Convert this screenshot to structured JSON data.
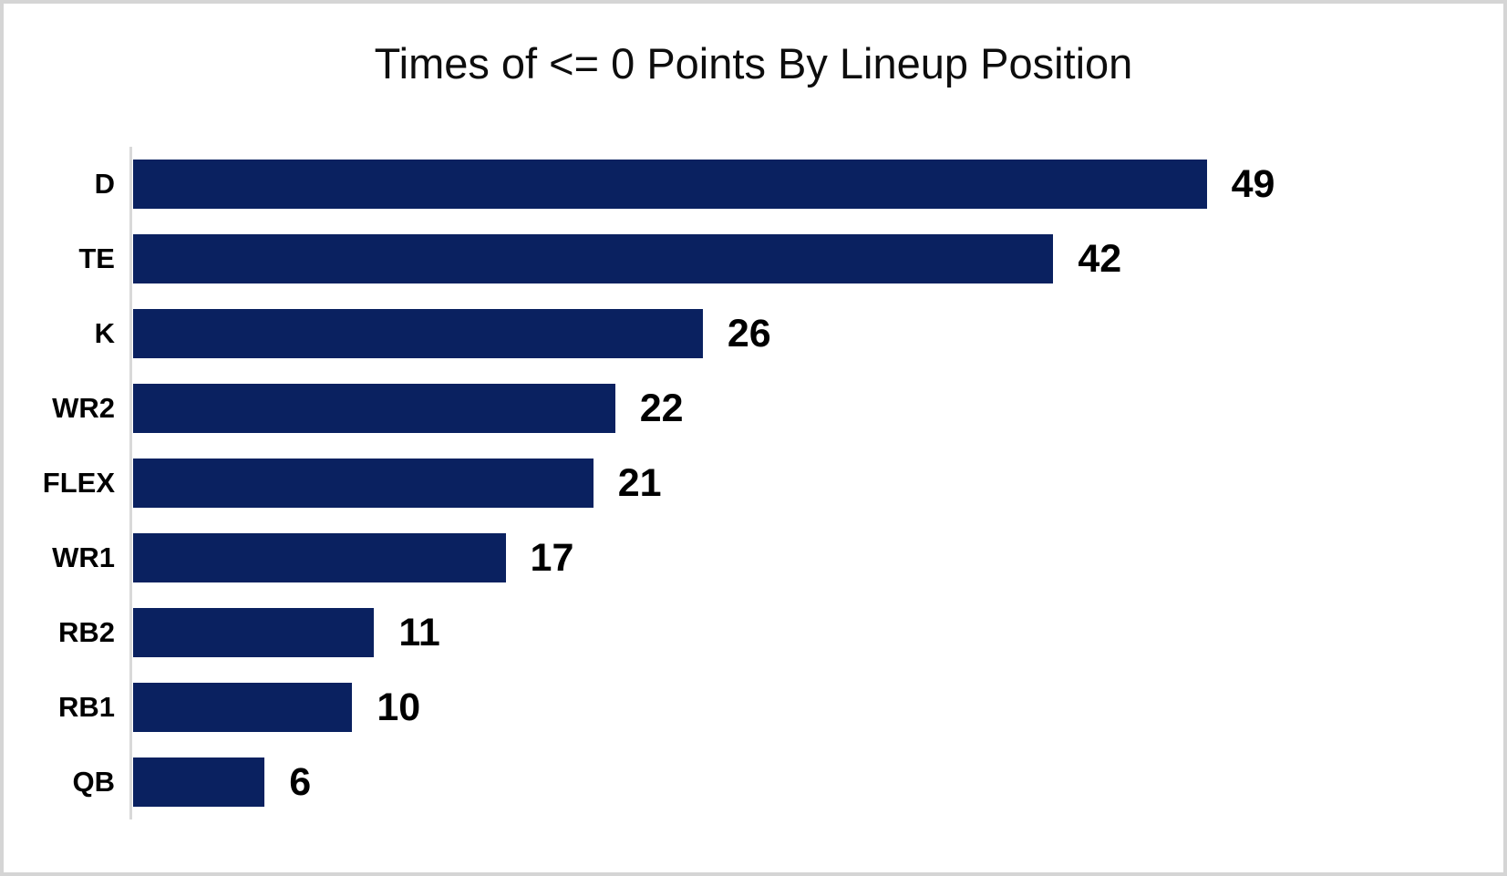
{
  "chart_data": {
    "type": "bar",
    "orientation": "horizontal",
    "title": "Times of <= 0 Points By Lineup Position",
    "categories": [
      "D",
      "TE",
      "K",
      "WR2",
      "FLEX",
      "WR1",
      "RB2",
      "RB1",
      "QB"
    ],
    "values": [
      49,
      42,
      26,
      22,
      21,
      17,
      11,
      10,
      6
    ],
    "value_labels_shown": true,
    "grid": false,
    "legend": "none",
    "bar_color": "#0a2160",
    "axis_line_color": "#d9d9d9",
    "label_color": "#000000",
    "title_color": "#0d0d0d",
    "background_color": "#ffffff",
    "border_color": "#d5d5d5"
  },
  "layout": {
    "max_bar_percent": 79.3
  }
}
